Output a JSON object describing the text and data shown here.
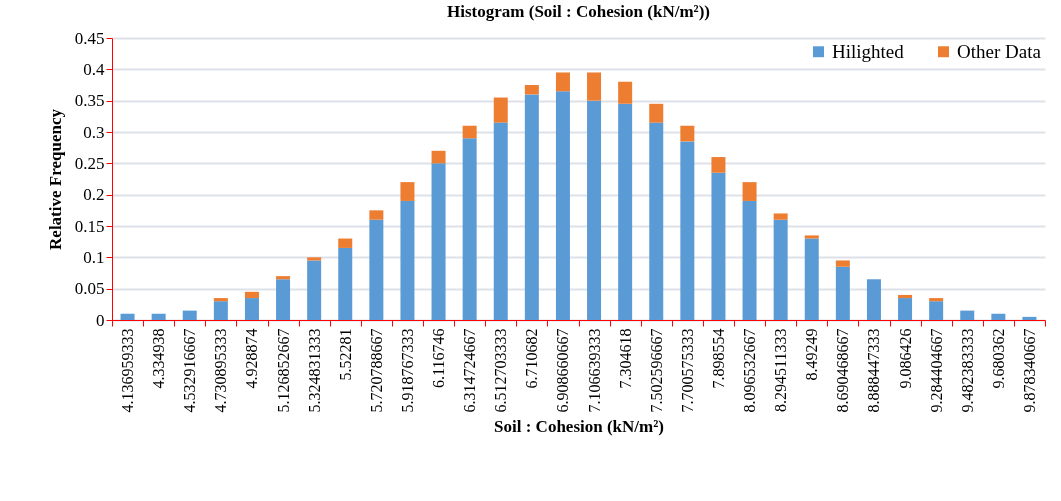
{
  "chart_data": {
    "type": "bar",
    "title": "Histogram (Soil : Cohesion (kN/m²))",
    "xlabel": "Soil : Cohesion (kN/m²)",
    "ylabel": "Relative Frequency",
    "categories": [
      "4.136959333",
      "4.334938",
      "4.532916667",
      "4.730895333",
      "4.928874",
      "5.126852667",
      "5.324831333",
      "5.52281",
      "5.720788667",
      "5.918767333",
      "6.116746",
      "6.314724667",
      "6.512703333",
      "6.710682",
      "6.908660667",
      "7.106639333",
      "7.304618",
      "7.502596667",
      "7.700575333",
      "7.898554",
      "8.096532667",
      "8.294511333",
      "8.49249",
      "8.690468667",
      "8.888447333",
      "9.086426",
      "9.284404667",
      "9.482383333",
      "9.680362",
      "9.878340667"
    ],
    "stacked": true,
    "series": [
      {
        "name": "Hilighted",
        "color": "#5b9bd5",
        "values": [
          0.01,
          0.01,
          0.015,
          0.03,
          0.035,
          0.065,
          0.095,
          0.115,
          0.16,
          0.19,
          0.25,
          0.29,
          0.315,
          0.36,
          0.365,
          0.35,
          0.345,
          0.315,
          0.285,
          0.235,
          0.19,
          0.16,
          0.13,
          0.085,
          0.065,
          0.035,
          0.03,
          0.015,
          0.01,
          0.005
        ]
      },
      {
        "name": "Other Data",
        "color": "#ed7d31",
        "values": [
          0,
          0,
          0,
          0.005,
          0.01,
          0.005,
          0.005,
          0.015,
          0.015,
          0.03,
          0.02,
          0.02,
          0.04,
          0.015,
          0.03,
          0.045,
          0.035,
          0.03,
          0.025,
          0.025,
          0.03,
          0.01,
          0.005,
          0.01,
          0,
          0.005,
          0.005,
          0,
          0,
          0
        ]
      }
    ],
    "ylim": [
      0,
      0.45
    ],
    "yticks": [
      0,
      0.05,
      0.1,
      0.15,
      0.2,
      0.25,
      0.3,
      0.35,
      0.4,
      0.45
    ],
    "grid": "y",
    "legend": "top right"
  }
}
